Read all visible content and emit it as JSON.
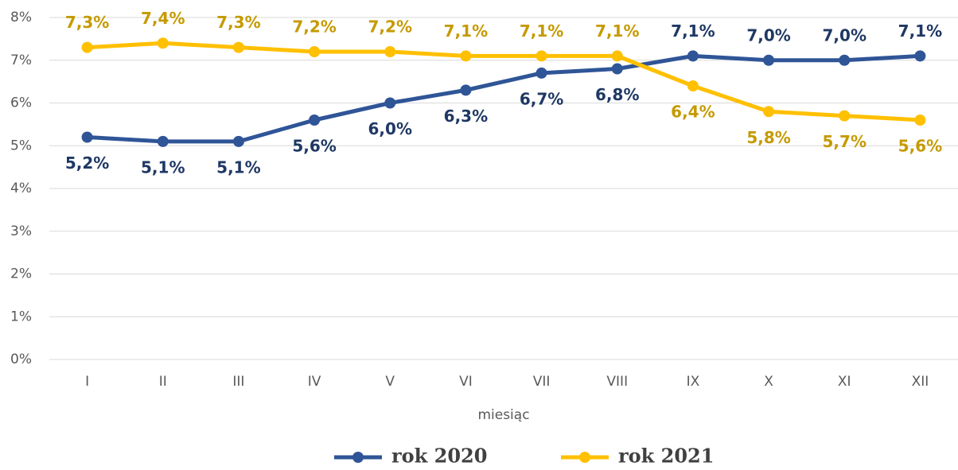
{
  "chart_data": {
    "type": "line",
    "categories": [
      "I",
      "II",
      "III",
      "IV",
      "V",
      "VI",
      "VII",
      "VIII",
      "IX",
      "X",
      "XI",
      "XII"
    ],
    "x_label": "miesiąc",
    "series": [
      {
        "name": "rok 2020",
        "color": "#2f5597",
        "label_color": "#1f3864",
        "values": [
          5.2,
          5.1,
          5.1,
          5.6,
          6.0,
          6.3,
          6.7,
          6.8,
          7.1,
          7.0,
          7.0,
          7.1
        ],
        "value_labels": [
          "5,2%",
          "5,1%",
          "5,1%",
          "5,6%",
          "6,0%",
          "6,3%",
          "6,7%",
          "6,8%",
          "7,1%",
          "7,0%",
          "7,0%",
          "7,1%"
        ]
      },
      {
        "name": "rok 2021",
        "color": "#ffc000",
        "label_color": "#c59a00",
        "values": [
          7.3,
          7.4,
          7.3,
          7.2,
          7.2,
          7.1,
          7.1,
          7.1,
          6.4,
          5.8,
          5.7,
          5.6
        ],
        "value_labels": [
          "7,3%",
          "7,4%",
          "7,3%",
          "7,2%",
          "7,2%",
          "7,1%",
          "7,1%",
          "7,1%",
          "6,4%",
          "5,8%",
          "5,7%",
          "5,6%"
        ]
      }
    ],
    "ylim": [
      0,
      8
    ],
    "yticks": [
      {
        "value": 0,
        "label": "0%"
      },
      {
        "value": 1,
        "label": "1%"
      },
      {
        "value": 2,
        "label": "2%"
      },
      {
        "value": 3,
        "label": "3%"
      },
      {
        "value": 4,
        "label": "4%"
      },
      {
        "value": 5,
        "label": "5%"
      },
      {
        "value": 6,
        "label": "6%"
      },
      {
        "value": 7,
        "label": "7%"
      },
      {
        "value": 8,
        "label": "8%"
      }
    ],
    "grid": true,
    "legend": "bottom"
  }
}
